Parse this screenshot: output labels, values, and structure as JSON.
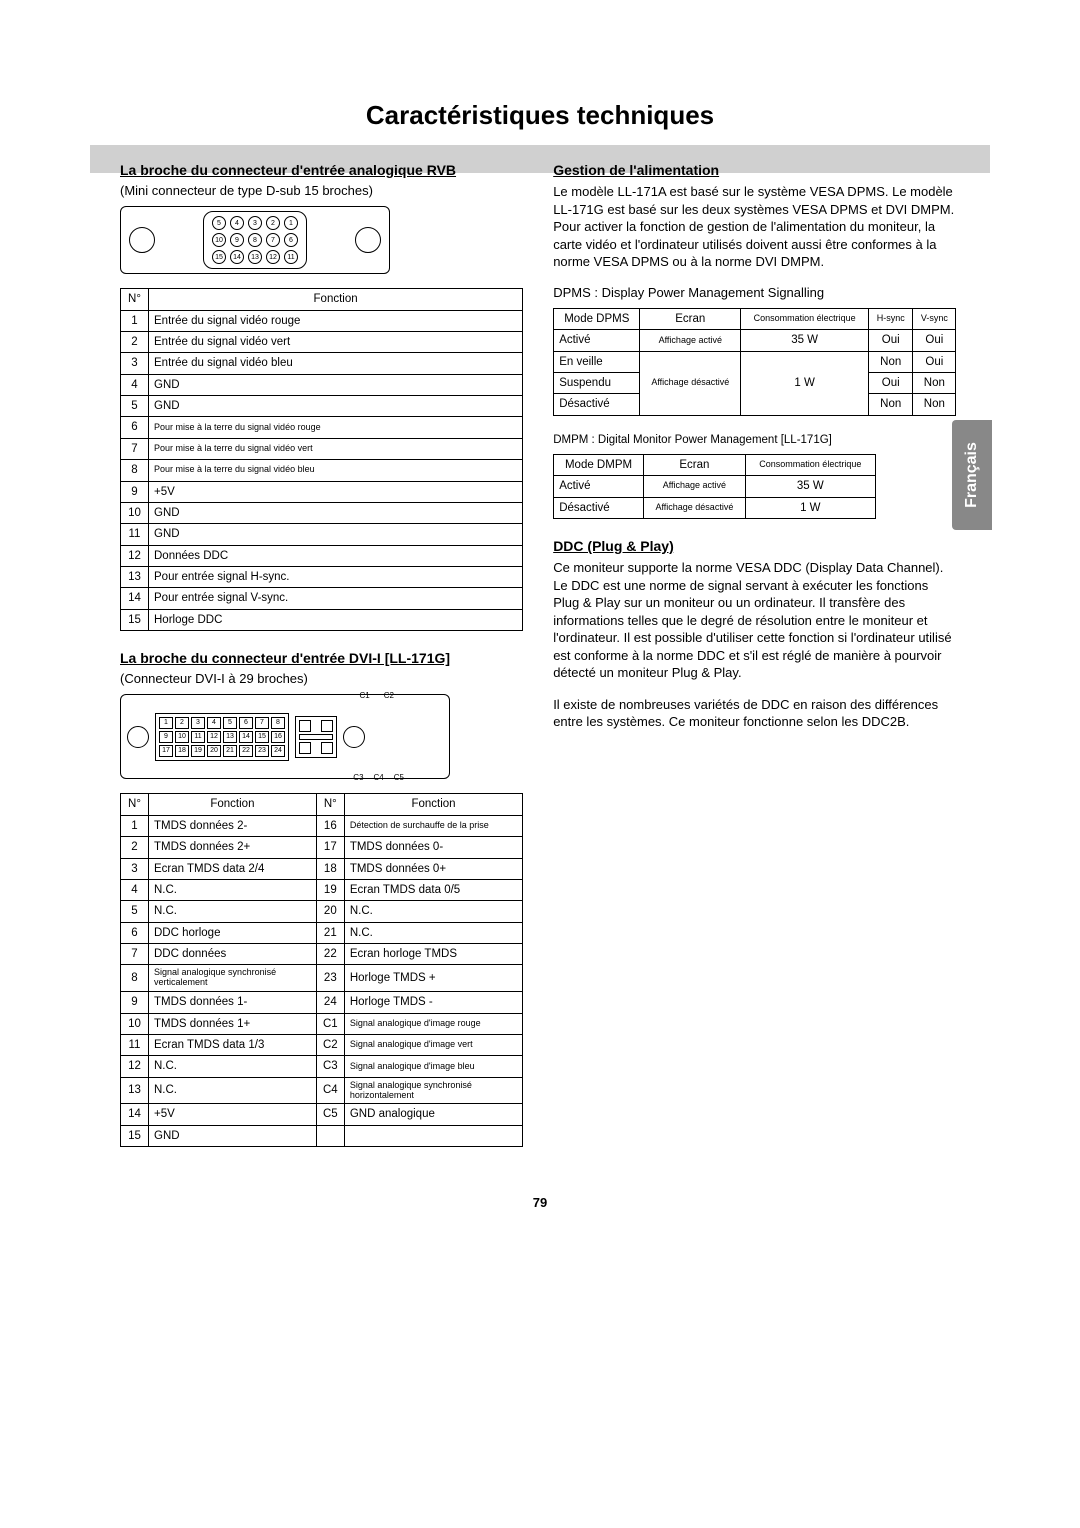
{
  "page": {
    "title": "Caractéristiques techniques",
    "number": "79",
    "lang_tab": "Français"
  },
  "left": {
    "section1_head": "La broche du connecteur d'entrée analogique RVB",
    "section1_sub": "(Mini connecteur de type D-sub 15 broches)",
    "dsub_pins_row1": [
      "5",
      "4",
      "3",
      "2",
      "1"
    ],
    "dsub_pins_row2": [
      "10",
      "9",
      "8",
      "7",
      "6"
    ],
    "dsub_pins_row3": [
      "15",
      "14",
      "13",
      "12",
      "11"
    ],
    "tbl1_head_num": "N°",
    "tbl1_head_fn": "Fonction",
    "tbl1_rows": [
      [
        "1",
        "Entrée du signal vidéo rouge"
      ],
      [
        "2",
        "Entrée du signal vidéo vert"
      ],
      [
        "3",
        "Entrée du signal vidéo bleu"
      ],
      [
        "4",
        "GND"
      ],
      [
        "5",
        "GND"
      ],
      [
        "6",
        "Pour mise à la terre du signal vidéo rouge"
      ],
      [
        "7",
        "Pour mise à la terre du signal vidéo vert"
      ],
      [
        "8",
        "Pour mise à la terre du signal vidéo bleu"
      ],
      [
        "9",
        "+5V"
      ],
      [
        "10",
        "GND"
      ],
      [
        "11",
        "GND"
      ],
      [
        "12",
        "Données DDC"
      ],
      [
        "13",
        "Pour entrée signal H-sync."
      ],
      [
        "14",
        "Pour entrée signal V-sync."
      ],
      [
        "15",
        "Horloge DDC"
      ]
    ],
    "section2_head": "La broche du connecteur d'entrée DVI-I [LL-171G]",
    "section2_sub": "(Connecteur DVI-I à 29 broches)",
    "dvi_row1": [
      "1",
      "2",
      "3",
      "4",
      "5",
      "6",
      "7",
      "8"
    ],
    "dvi_row2": [
      "9",
      "10",
      "11",
      "12",
      "13",
      "14",
      "15",
      "16"
    ],
    "dvi_row3": [
      "17",
      "18",
      "19",
      "20",
      "21",
      "22",
      "23",
      "24"
    ],
    "dvi_c_top": [
      "C1",
      "C2"
    ],
    "dvi_c_bot": [
      "C3",
      "C4",
      "C5"
    ],
    "tbl2_head_num": "N°",
    "tbl2_head_fn": "Fonction",
    "tbl2_rows": [
      [
        "1",
        "TMDS données 2-",
        "16",
        "Détection de surchauffe de la prise"
      ],
      [
        "2",
        "TMDS données 2+",
        "17",
        "TMDS données 0-"
      ],
      [
        "3",
        "Ecran TMDS data 2/4",
        "18",
        "TMDS données 0+"
      ],
      [
        "4",
        "N.C.",
        "19",
        "Ecran TMDS data 0/5"
      ],
      [
        "5",
        "N.C.",
        "20",
        "N.C."
      ],
      [
        "6",
        "DDC horloge",
        "21",
        "N.C."
      ],
      [
        "7",
        "DDC données",
        "22",
        "Ecran horloge TMDS"
      ],
      [
        "8",
        "Signal analogique synchronisé verticalement",
        "23",
        "Horloge TMDS +"
      ],
      [
        "9",
        "TMDS données 1-",
        "24",
        "Horloge TMDS -"
      ],
      [
        "10",
        "TMDS données 1+",
        "C1",
        "Signal analogique d'image rouge"
      ],
      [
        "11",
        "Ecran TMDS data 1/3",
        "C2",
        "Signal analogique d'image vert"
      ],
      [
        "12",
        "N.C.",
        "C3",
        "Signal analogique d'image bleu"
      ],
      [
        "13",
        "N.C.",
        "C4",
        "Signal analogique synchronisé horizontalement"
      ],
      [
        "14",
        "+5V",
        "C5",
        "GND analogique"
      ],
      [
        "15",
        "GND",
        "",
        ""
      ]
    ]
  },
  "right": {
    "pm_head": "Gestion de l'alimentation",
    "pm_para": "Le modèle LL-171A est basé sur le système VESA DPMS. Le modèle LL-171G est basé sur les deux systèmes VESA DPMS et DVI DMPM. Pour activer la fonction de gestion de l'alimentation du moniteur, la carte vidéo et l'ordinateur utilisés doivent aussi être conformes à la norme VESA DPMS ou à la norme DVI DMPM.",
    "dpms_label": "DPMS : Display Power Management Signalling",
    "dpms_head": [
      "Mode DPMS",
      "Ecran",
      "Consommation électrique",
      "H-sync",
      "V-sync"
    ],
    "dpms_r1": [
      "Activé",
      "Affichage activé",
      "35 W",
      "Oui",
      "Oui"
    ],
    "dpms_r2": [
      "En veille",
      "",
      "",
      "Non",
      "Oui"
    ],
    "dpms_merge_screen": "Affichage désactivé",
    "dpms_merge_power": "1 W",
    "dpms_r3": [
      "Suspendu",
      "",
      "",
      "Oui",
      "Non"
    ],
    "dpms_r4": [
      "Désactivé",
      "",
      "",
      "Non",
      "Non"
    ],
    "dmpm_label": "DMPM : Digital Monitor Power Management [LL-171G]",
    "dmpm_head": [
      "Mode DMPM",
      "Ecran",
      "Consommation électrique"
    ],
    "dmpm_rows": [
      [
        "Activé",
        "Affichage activé",
        "35 W"
      ],
      [
        "Désactivé",
        "Affichage désactivé",
        "1 W"
      ]
    ],
    "ddc_head": "DDC (Plug & Play)",
    "ddc_para1": "Ce moniteur supporte la norme VESA DDC (Display Data Channel).",
    "ddc_para2": "Le DDC est une norme de signal servant à exécuter les fonctions Plug & Play sur un moniteur ou un ordinateur. Il transfère des informations telles que le degré de résolution entre le moniteur et l'ordinateur. Il est possible d'utiliser cette fonction si l'ordinateur utilisé est conforme à la norme DDC et s'il est réglé de manière à pourvoir détecté un moniteur Plug & Play.",
    "ddc_para3": "Il existe de nombreuses variétés de DDC en raison des différences entre les systèmes. Ce moniteur fonctionne selon les DDC2B."
  }
}
